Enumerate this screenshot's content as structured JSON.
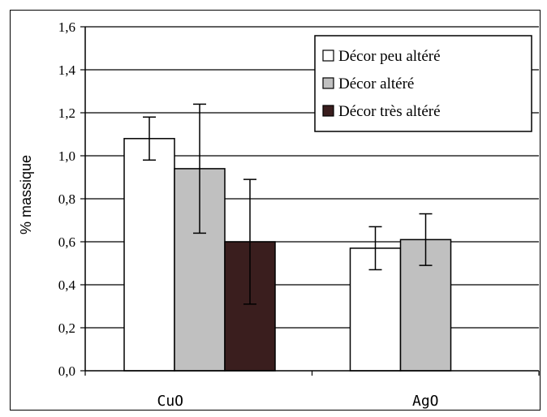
{
  "chart_data": {
    "type": "bar",
    "title": "",
    "xlabel": "",
    "ylabel": "% massique",
    "ylim": [
      0,
      1.6
    ],
    "yticks": [
      "0,0",
      "0,2",
      "0,4",
      "0,6",
      "0,8",
      "1,0",
      "1,2",
      "1,4",
      "1,6"
    ],
    "categories": [
      "CuO",
      "AgO"
    ],
    "grid": true,
    "legend_position": "top-right",
    "series": [
      {
        "name": "Décor peu altéré",
        "color": "#ffffff",
        "values": [
          1.08,
          0.57
        ],
        "error": [
          0.1,
          0.1
        ]
      },
      {
        "name": "Décor altéré",
        "color": "#c0c0c0",
        "values": [
          0.94,
          0.61
        ],
        "error": [
          0.3,
          0.12
        ]
      },
      {
        "name": "Décor très altéré",
        "color": "#3a1e1e",
        "values": [
          0.6,
          null
        ],
        "error": [
          0.29,
          null
        ]
      }
    ]
  }
}
